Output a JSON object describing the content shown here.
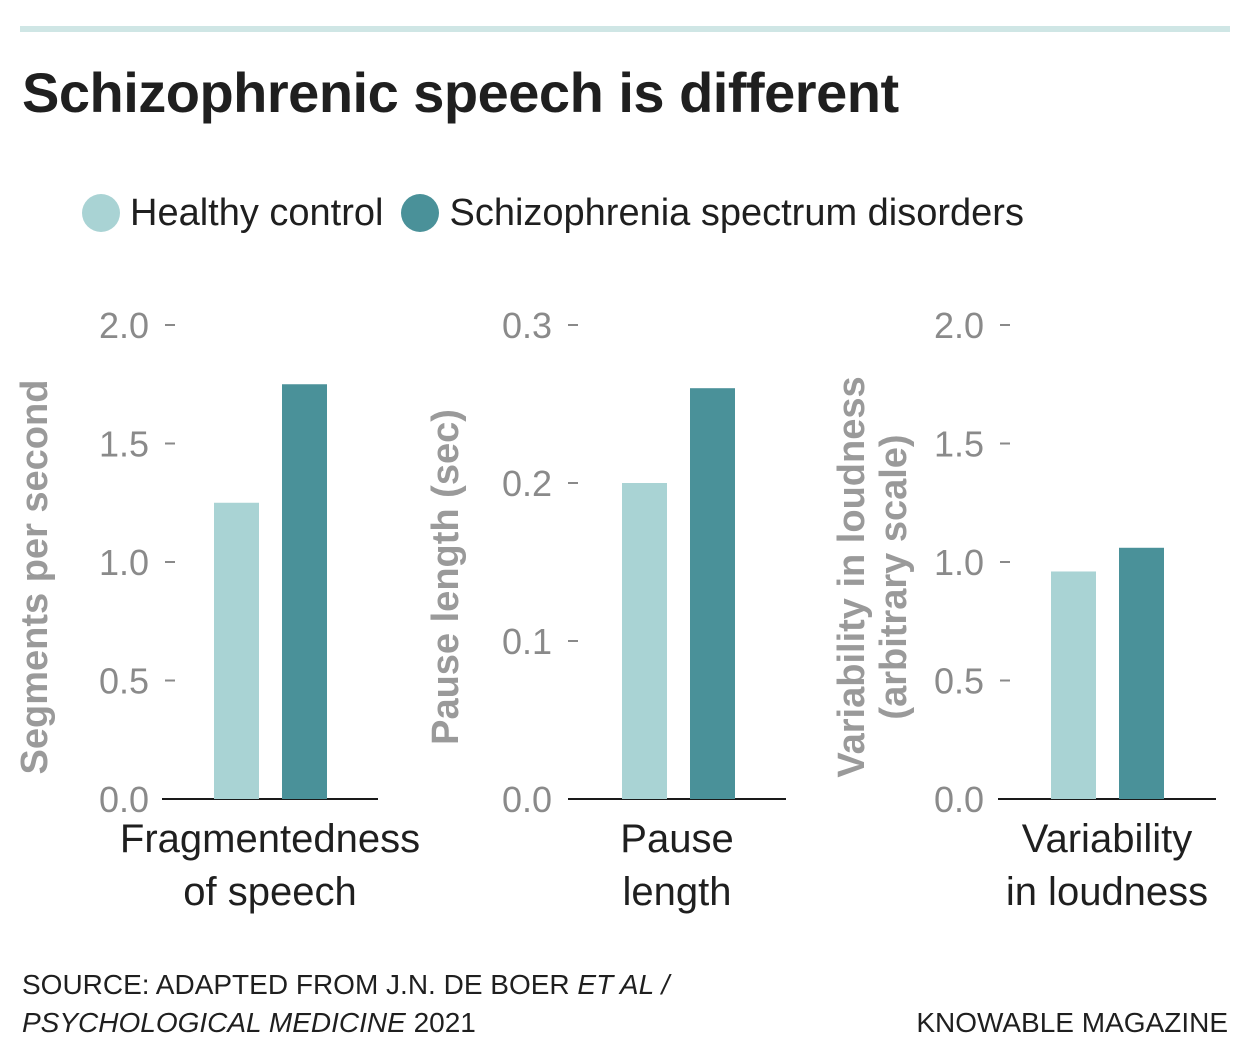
{
  "title": "Schizophrenic speech is different",
  "legend": [
    {
      "label": "Healthy control",
      "color": "#a9d3d4"
    },
    {
      "label": "Schizophrenia spectrum disorders",
      "color": "#4a9199"
    }
  ],
  "chart_data": [
    {
      "type": "bar",
      "ylabel_lines": [
        "Segments per second"
      ],
      "ylim": [
        0,
        2.0
      ],
      "yticks": [
        "0.0",
        "0.5",
        "1.0",
        "1.5",
        "2.0"
      ],
      "category_lines": [
        "Fragmentedness",
        "of speech"
      ],
      "series": [
        {
          "name": "Healthy control",
          "values": [
            1.25
          ]
        },
        {
          "name": "Schizophrenia spectrum disorders",
          "values": [
            1.75
          ]
        }
      ]
    },
    {
      "type": "bar",
      "ylabel_lines": [
        "Pause length (sec)"
      ],
      "ylim": [
        0,
        0.3
      ],
      "yticks": [
        "0.0",
        "0.1",
        "0.2",
        "0.3"
      ],
      "category_lines": [
        "Pause",
        "length"
      ],
      "series": [
        {
          "name": "Healthy control",
          "values": [
            0.2
          ]
        },
        {
          "name": "Schizophrenia spectrum disorders",
          "values": [
            0.26
          ]
        }
      ]
    },
    {
      "type": "bar",
      "ylabel_lines": [
        "Variability in loudness",
        "(arbitrary scale)"
      ],
      "ylim": [
        0,
        2.0
      ],
      "yticks": [
        "0.0",
        "0.5",
        "1.0",
        "1.5",
        "2.0"
      ],
      "category_lines": [
        "Variability",
        "in loudness"
      ],
      "series": [
        {
          "name": "Healthy control",
          "values": [
            0.96
          ]
        },
        {
          "name": "Schizophrenia spectrum disorders",
          "values": [
            1.06
          ]
        }
      ]
    }
  ],
  "source": {
    "line1_plain": "SOURCE: ADAPTED FROM J.N. DE BOER ",
    "line1_italic": "ET AL /",
    "line2_italic": "PSYCHOLOGICAL MEDICINE",
    "line2_plain": " 2021"
  },
  "credit": "KNOWABLE MAGAZINE"
}
